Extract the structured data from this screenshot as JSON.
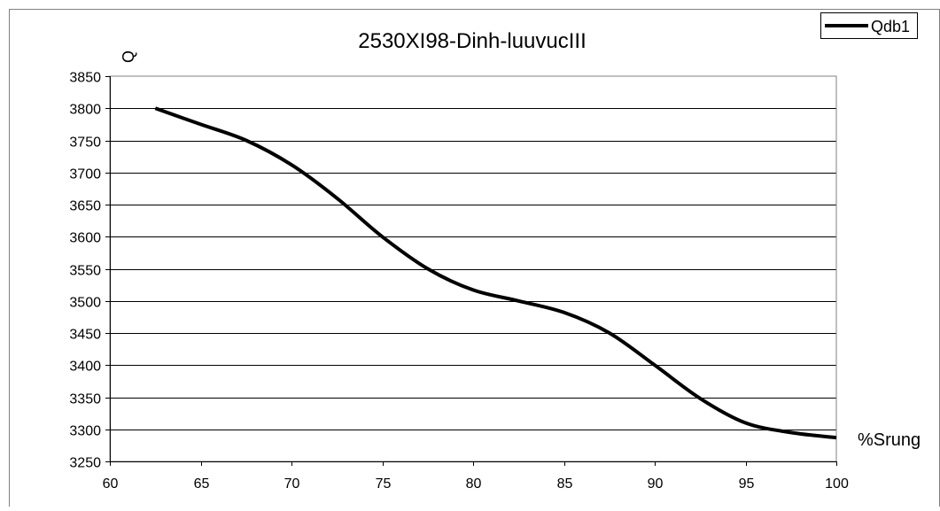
{
  "chart_data": {
    "type": "line",
    "title": "2530XI98-Dinh-luuvucIII",
    "xlabel": "%Srung",
    "ylabel": "Q",
    "xlim": [
      60,
      100
    ],
    "ylim": [
      3250,
      3850
    ],
    "xticks": [
      60,
      65,
      70,
      75,
      80,
      85,
      90,
      95,
      100
    ],
    "yticks": [
      3250,
      3300,
      3350,
      3400,
      3450,
      3500,
      3550,
      3600,
      3650,
      3700,
      3750,
      3800,
      3850
    ],
    "grid": "horizontal",
    "legend": "top-right",
    "series": [
      {
        "name": "Qdb1",
        "color": "#000000",
        "x": [
          62.5,
          65,
          67.5,
          70,
          72.5,
          75,
          77.5,
          80,
          82.5,
          85,
          87.5,
          90,
          92.5,
          95,
          97.5,
          100
        ],
        "y": [
          3800,
          3775,
          3750,
          3712,
          3660,
          3600,
          3550,
          3517,
          3500,
          3482,
          3450,
          3400,
          3348,
          3310,
          3295,
          3287
        ]
      }
    ]
  }
}
